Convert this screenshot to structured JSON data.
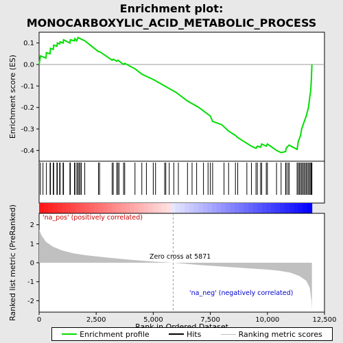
{
  "chart_data": {
    "type": "line",
    "title_line1": "Enrichment plot:",
    "title_line2": "MONOCARBOXYLIC_ACID_METABOLIC_PROCESS",
    "es_ylabel": "Enrichment score (ES)",
    "metric_ylabel": "Ranked list metric (PreRanked)",
    "xlabel": "Rank in Ordered Dataset",
    "xlim": [
      0,
      12500
    ],
    "es_ylim": [
      -0.45,
      0.15
    ],
    "metric_ylim": [
      -2.6,
      2.6
    ],
    "x_ticks": [
      0,
      2500,
      5000,
      7500,
      10000,
      12500
    ],
    "x_tick_labels": [
      "0",
      "2,500",
      "5,000",
      "7,500",
      "10,000",
      "12,500"
    ],
    "es_ticks": [
      0.1,
      0.0,
      -0.1,
      -0.2,
      -0.3,
      -0.4
    ],
    "es_tick_labels": [
      "0.1",
      "0.0",
      "-0.1",
      "-0.2",
      "-0.3",
      "-0.4"
    ],
    "metric_ticks": [
      2,
      1,
      0,
      -1,
      -2
    ],
    "metric_tick_labels": [
      "2",
      "1",
      "0",
      "-1",
      "-2"
    ],
    "annotations": {
      "pos": "'na_pos' (positively correlated)",
      "neg": "'na_neg' (negatively correlated)",
      "zero": "Zero cross at 5871"
    },
    "zero_cross": 5871,
    "n_genes": 11950,
    "series": [
      {
        "name": "Enrichment profile",
        "color": "#00dd00",
        "points": [
          [
            0,
            0.0
          ],
          [
            60,
            0.04
          ],
          [
            300,
            0.03
          ],
          [
            320,
            0.055
          ],
          [
            480,
            0.05
          ],
          [
            500,
            0.075
          ],
          [
            620,
            0.07
          ],
          [
            640,
            0.09
          ],
          [
            780,
            0.085
          ],
          [
            800,
            0.1
          ],
          [
            900,
            0.095
          ],
          [
            920,
            0.105
          ],
          [
            1050,
            0.1
          ],
          [
            1070,
            0.115
          ],
          [
            1350,
            0.1
          ],
          [
            1370,
            0.115
          ],
          [
            1550,
            0.11
          ],
          [
            1570,
            0.12
          ],
          [
            1650,
            0.11
          ],
          [
            1700,
            0.125
          ],
          [
            2000,
            0.11
          ],
          [
            2600,
            0.06
          ],
          [
            2650,
            0.06
          ],
          [
            3200,
            0.02
          ],
          [
            3250,
            0.025
          ],
          [
            3400,
            0.015
          ],
          [
            3450,
            0.02
          ],
          [
            3700,
            0.0
          ],
          [
            3750,
            0.005
          ],
          [
            4200,
            -0.02
          ],
          [
            4500,
            -0.045
          ],
          [
            5000,
            -0.07
          ],
          [
            5500,
            -0.1
          ],
          [
            6000,
            -0.13
          ],
          [
            6500,
            -0.17
          ],
          [
            7000,
            -0.2
          ],
          [
            7500,
            -0.24
          ],
          [
            7600,
            -0.265
          ],
          [
            8000,
            -0.28
          ],
          [
            8300,
            -0.31
          ],
          [
            8600,
            -0.33
          ],
          [
            8700,
            -0.34
          ],
          [
            9000,
            -0.36
          ],
          [
            9300,
            -0.38
          ],
          [
            9500,
            -0.39
          ],
          [
            9560,
            -0.38
          ],
          [
            9700,
            -0.385
          ],
          [
            9750,
            -0.37
          ],
          [
            9950,
            -0.38
          ],
          [
            10000,
            -0.37
          ],
          [
            10400,
            -0.4
          ],
          [
            10600,
            -0.41
          ],
          [
            10800,
            -0.405
          ],
          [
            10820,
            -0.39
          ],
          [
            10900,
            -0.38
          ],
          [
            10950,
            -0.375
          ],
          [
            11300,
            -0.395
          ],
          [
            11350,
            -0.36
          ],
          [
            11450,
            -0.33
          ],
          [
            11500,
            -0.3
          ],
          [
            11600,
            -0.27
          ],
          [
            11700,
            -0.24
          ],
          [
            11800,
            -0.2
          ],
          [
            11850,
            -0.155
          ],
          [
            11900,
            -0.12
          ],
          [
            11930,
            -0.06
          ],
          [
            11950,
            0.0
          ]
        ]
      },
      {
        "name": "Hits",
        "color": "#000000",
        "positions": [
          60,
          170,
          320,
          480,
          500,
          620,
          640,
          780,
          800,
          900,
          920,
          1050,
          1070,
          1350,
          1370,
          1550,
          1570,
          1650,
          1700,
          1750,
          1800,
          1850,
          2000,
          2600,
          2650,
          3200,
          3250,
          3400,
          3450,
          3500,
          3700,
          3750,
          4200,
          4500,
          4700,
          5000,
          5100,
          5500,
          5550,
          5700,
          5900,
          6100,
          6500,
          6700,
          6900,
          7200,
          7400,
          7500,
          7600,
          8100,
          8300,
          8600,
          8700,
          9100,
          9300,
          9500,
          9560,
          9700,
          9750,
          9950,
          10000,
          10400,
          10600,
          10800,
          10820,
          10900,
          10950,
          11300,
          11350,
          11400,
          11450,
          11500,
          11550,
          11600,
          11650,
          11700,
          11750,
          11800,
          11850,
          11900,
          11920,
          11950
        ]
      },
      {
        "name": "Ranking metric scores",
        "color": "#c0c0c0",
        "points": [
          [
            0,
            1.75
          ],
          [
            100,
            1.45
          ],
          [
            300,
            1.1
          ],
          [
            600,
            0.85
          ],
          [
            1000,
            0.65
          ],
          [
            1500,
            0.5
          ],
          [
            2000,
            0.4
          ],
          [
            3000,
            0.27
          ],
          [
            4000,
            0.16
          ],
          [
            5000,
            0.06
          ],
          [
            5871,
            0.0
          ],
          [
            7000,
            -0.12
          ],
          [
            8000,
            -0.2
          ],
          [
            9000,
            -0.28
          ],
          [
            10000,
            -0.36
          ],
          [
            10500,
            -0.42
          ],
          [
            11000,
            -0.52
          ],
          [
            11400,
            -0.7
          ],
          [
            11700,
            -0.95
          ],
          [
            11850,
            -1.3
          ],
          [
            11930,
            -2.0
          ],
          [
            11950,
            -2.5
          ]
        ]
      }
    ]
  }
}
